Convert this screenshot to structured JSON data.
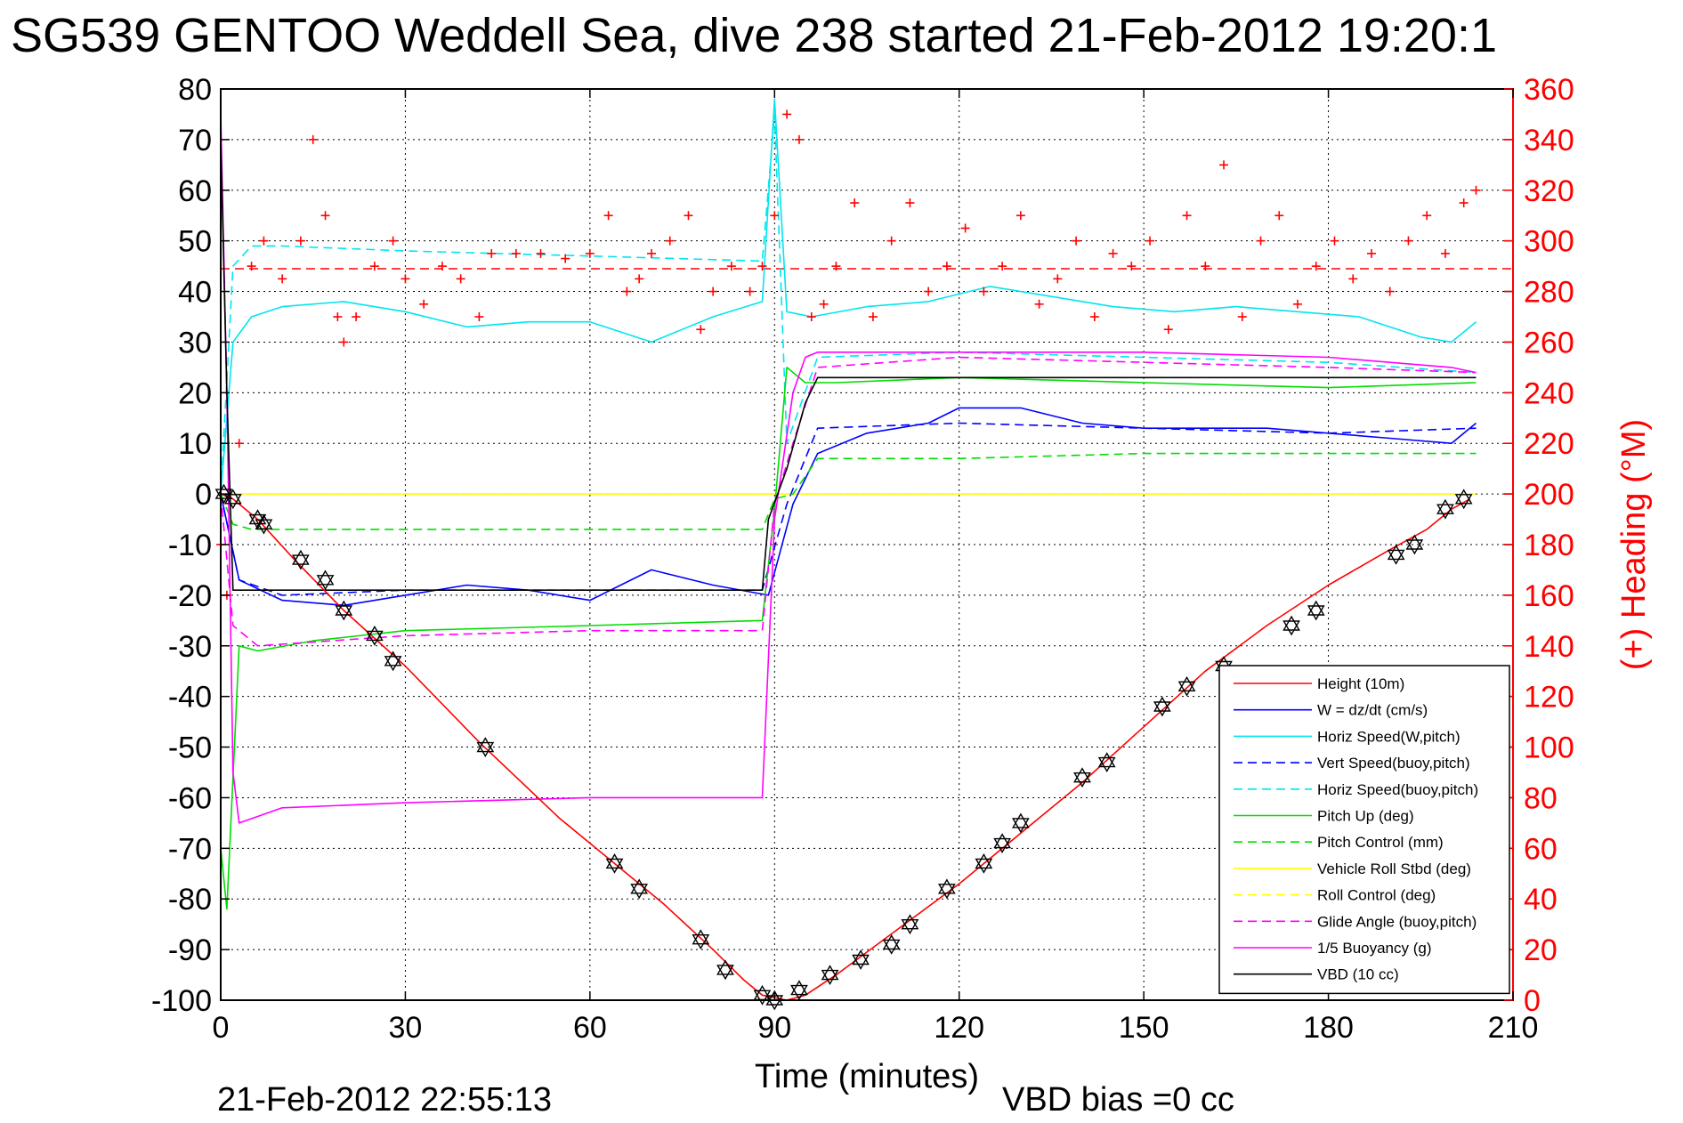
{
  "chart_data": {
    "type": "line",
    "title": "SG539 GENTOO Weddell Sea, dive 238 started 21-Feb-2012 19:20:1",
    "xlabel": "Time (minutes)",
    "ylabel_right": "(+) Heading (°M)",
    "xlim": [
      0,
      210
    ],
    "ylim": [
      -100,
      80
    ],
    "ylim_right": [
      0,
      360
    ],
    "x_ticks": [
      0,
      30,
      60,
      90,
      120,
      150,
      180,
      210
    ],
    "y_ticks": [
      -100,
      -90,
      -80,
      -70,
      -60,
      -50,
      -40,
      -30,
      -20,
      -10,
      0,
      10,
      20,
      30,
      40,
      50,
      60,
      70,
      80
    ],
    "y_ticks_right": [
      0,
      20,
      40,
      60,
      80,
      100,
      120,
      140,
      160,
      180,
      200,
      220,
      240,
      260,
      280,
      300,
      320,
      340,
      360
    ],
    "grid": true,
    "legend_position": "bottom-right",
    "heading_target": 289,
    "series": [
      {
        "name": "Height (10m)",
        "color": "#ff0000",
        "style": "solid",
        "x": [
          0,
          2,
          6,
          12,
          20,
          30,
          42,
          55,
          64,
          72,
          80,
          85,
          88,
          92,
          95,
          100,
          110,
          120,
          130,
          140,
          150,
          160,
          170,
          180,
          190,
          196,
          200,
          203
        ],
        "values": [
          0,
          -1,
          -5,
          -13,
          -23,
          -34,
          -49,
          -64,
          -73,
          -81,
          -90,
          -96,
          -99,
          -100,
          -99,
          -95,
          -86,
          -77,
          -67,
          -57,
          -46,
          -35,
          -26,
          -18,
          -11,
          -7,
          -3,
          -1
        ]
      },
      {
        "name": "W = dz/dt (cm/s)",
        "color": "#0000ff",
        "style": "solid",
        "x": [
          0,
          3,
          10,
          20,
          30,
          40,
          50,
          60,
          70,
          80,
          89,
          93,
          97,
          105,
          115,
          120,
          130,
          140,
          150,
          160,
          170,
          180,
          190,
          200,
          204
        ],
        "values": [
          0,
          -17,
          -21,
          -22,
          -20,
          -18,
          -19,
          -21,
          -15,
          -18,
          -20,
          -2,
          8,
          12,
          14,
          17,
          17,
          14,
          13,
          13,
          13,
          12,
          11,
          10,
          14
        ]
      },
      {
        "name": "Horiz Speed(W,pitch)",
        "color": "#00e5ee",
        "style": "solid",
        "x": [
          0,
          2,
          5,
          10,
          20,
          30,
          40,
          50,
          60,
          70,
          80,
          88,
          90,
          92,
          96,
          105,
          115,
          125,
          135,
          145,
          155,
          165,
          175,
          185,
          195,
          200,
          204
        ],
        "values": [
          0,
          30,
          35,
          37,
          38,
          36,
          33,
          34,
          34,
          30,
          35,
          38,
          78,
          36,
          35,
          37,
          38,
          41,
          39,
          37,
          36,
          37,
          36,
          35,
          31,
          30,
          34
        ]
      },
      {
        "name": "Vert Speed(buoy,pitch)",
        "color": "#0000ff",
        "style": "dashed",
        "x": [
          0,
          3,
          10,
          30,
          60,
          88,
          92,
          97,
          120,
          150,
          180,
          204
        ],
        "values": [
          0,
          -17,
          -20,
          -19,
          -19,
          -19,
          -2,
          13,
          14,
          13,
          12,
          13
        ]
      },
      {
        "name": "Horiz Speed(buoy,pitch)",
        "color": "#00e5ee",
        "style": "dashed",
        "x": [
          0,
          2,
          5,
          10,
          30,
          60,
          88,
          90,
          92,
          97,
          120,
          150,
          180,
          204
        ],
        "values": [
          0,
          45,
          49,
          49,
          48,
          47,
          46,
          75,
          10,
          27,
          28,
          27,
          26,
          24
        ]
      },
      {
        "name": "Pitch Up (deg)",
        "color": "#00dd00",
        "style": "solid",
        "x": [
          0,
          1,
          3,
          6,
          15,
          30,
          60,
          88,
          90,
          92,
          95,
          100,
          120,
          150,
          180,
          204
        ],
        "values": [
          -70,
          -82,
          -30,
          -31,
          -29,
          -27,
          -26,
          -25,
          -3,
          25,
          22,
          22,
          23,
          22,
          21,
          22
        ]
      },
      {
        "name": "Pitch Control (mm)",
        "color": "#00dd00",
        "style": "dashed",
        "x": [
          0,
          2,
          5,
          30,
          60,
          88,
          90,
          93,
          97,
          120,
          150,
          180,
          204
        ],
        "values": [
          0,
          -6,
          -7,
          -7,
          -7,
          -7,
          -1,
          0,
          7,
          7,
          8,
          8,
          8
        ]
      },
      {
        "name": "Vehicle Roll Stbd (deg)",
        "color": "#ffff00",
        "style": "solid",
        "x": [
          0,
          5,
          30,
          60,
          90,
          120,
          150,
          180,
          204
        ],
        "values": [
          0,
          0,
          0,
          0,
          0,
          0,
          0,
          0,
          0
        ]
      },
      {
        "name": "Roll Control (deg)",
        "color": "#ffff00",
        "style": "dashed",
        "x": [
          0,
          5,
          30,
          60,
          90,
          120,
          150,
          180,
          204
        ],
        "values": [
          0,
          0,
          0,
          0,
          0,
          0,
          0,
          0,
          0
        ]
      },
      {
        "name": "Glide Angle (buoy,pitch)",
        "color": "#ff00ff",
        "style": "dashed",
        "x": [
          0,
          2,
          6,
          30,
          60,
          88,
          90,
          93,
          97,
          120,
          150,
          180,
          204
        ],
        "values": [
          0,
          -26,
          -30,
          -28,
          -27,
          -27,
          -2,
          10,
          25,
          27,
          26,
          25,
          24
        ]
      },
      {
        "name": "1/5 Buoyancy (g)",
        "color": "#ff00ff",
        "style": "solid",
        "x": [
          0,
          1,
          2,
          3,
          10,
          30,
          60,
          88,
          90,
          93,
          95,
          97,
          120,
          150,
          180,
          200,
          204
        ],
        "values": [
          75,
          20,
          -55,
          -65,
          -62,
          -61,
          -60,
          -60,
          -5,
          20,
          27,
          28,
          28,
          28,
          27,
          25,
          24
        ]
      },
      {
        "name": "VBD (10 cc)",
        "color": "#000000",
        "style": "solid",
        "x": [
          0,
          1,
          2,
          3,
          5,
          30,
          60,
          88,
          89,
          92,
          95,
          97,
          120,
          150,
          180,
          204
        ],
        "values": [
          70,
          20,
          -19,
          -19,
          -19,
          -19,
          -19,
          -19,
          -5,
          5,
          18,
          23,
          23,
          23,
          23,
          23
        ]
      }
    ],
    "heading": {
      "name": "Heading",
      "color": "#ff0000",
      "marker": "+",
      "x": [
        0,
        1,
        3,
        5,
        7,
        10,
        13,
        15,
        17,
        19,
        20,
        22,
        25,
        28,
        30,
        33,
        36,
        39,
        42,
        44,
        48,
        52,
        56,
        60,
        63,
        66,
        68,
        70,
        73,
        76,
        78,
        80,
        83,
        86,
        88,
        90,
        92,
        94,
        96,
        98,
        100,
        103,
        106,
        109,
        112,
        115,
        118,
        121,
        124,
        127,
        130,
        133,
        136,
        139,
        142,
        145,
        148,
        151,
        154,
        157,
        160,
        163,
        166,
        169,
        172,
        175,
        178,
        181,
        184,
        187,
        190,
        193,
        196,
        199,
        202,
        204
      ],
      "values": [
        180,
        160,
        220,
        290,
        300,
        285,
        300,
        340,
        310,
        270,
        260,
        270,
        290,
        300,
        285,
        275,
        290,
        285,
        270,
        295,
        295,
        295,
        293,
        295,
        310,
        280,
        285,
        295,
        300,
        310,
        265,
        280,
        290,
        280,
        290,
        310,
        350,
        340,
        270,
        275,
        290,
        315,
        270,
        300,
        315,
        280,
        290,
        305,
        280,
        290,
        310,
        275,
        285,
        300,
        270,
        295,
        290,
        300,
        265,
        310,
        290,
        330,
        270,
        300,
        310,
        275,
        290,
        300,
        285,
        295,
        280,
        300,
        310,
        295,
        315,
        320
      ]
    },
    "markers": {
      "name": "Height samples",
      "color": "#000000",
      "marker": "hexagram",
      "x": [
        0.5,
        2,
        6,
        7,
        13,
        17,
        20,
        25,
        28,
        43,
        64,
        68,
        78,
        82,
        88,
        90,
        94,
        99,
        104,
        109,
        112,
        118,
        124,
        127,
        130,
        140,
        144,
        153,
        157,
        163,
        174,
        178,
        191,
        194,
        199,
        202
      ],
      "values": [
        0,
        -1,
        -5,
        -6,
        -13,
        -17,
        -23,
        -28,
        -33,
        -50,
        -73,
        -78,
        -88,
        -94,
        -99,
        -100,
        -98,
        -95,
        -92,
        -89,
        -85,
        -78,
        -73,
        -69,
        -65,
        -56,
        -53,
        -42,
        -38,
        -34,
        -26,
        -23,
        -12,
        -10,
        -3,
        -1
      ]
    }
  },
  "footer": {
    "timestamp": "21-Feb-2012 22:55:13",
    "vbd_bias": "VBD bias =0 cc"
  }
}
